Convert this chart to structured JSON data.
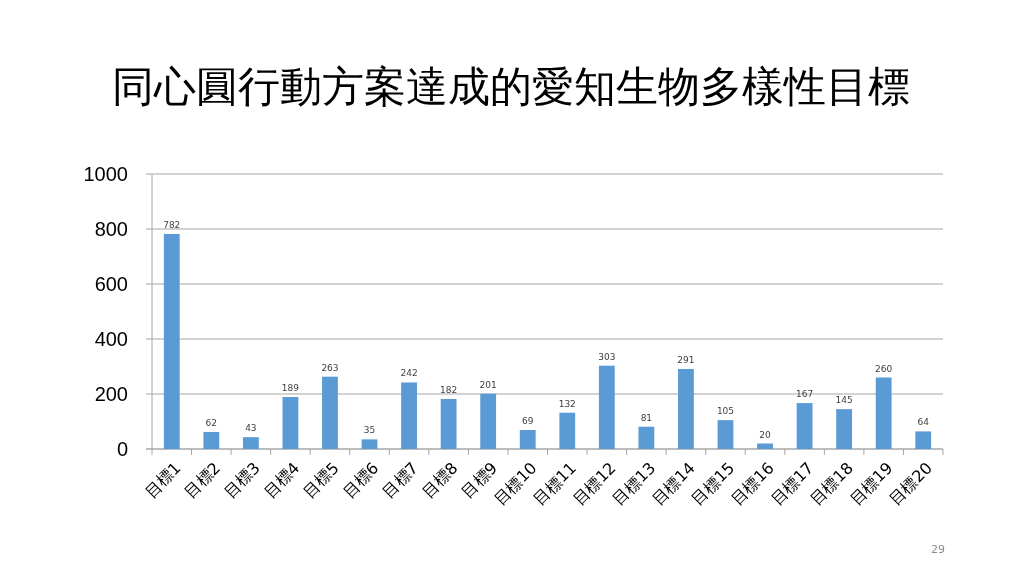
{
  "chart_data": {
    "type": "bar",
    "title": "同心圓行動方案達成的愛知生物多樣性目標",
    "categories": [
      "目標1",
      "目標2",
      "目標3",
      "目標4",
      "目標5",
      "目標6",
      "目標7",
      "目標8",
      "目標9",
      "目標10",
      "目標11",
      "目標12",
      "目標13",
      "目標14",
      "目標15",
      "目標16",
      "目標17",
      "目標18",
      "目標19",
      "目標20"
    ],
    "values": [
      782,
      62,
      43,
      189,
      263,
      35,
      242,
      182,
      201,
      69,
      132,
      303,
      81,
      291,
      105,
      20,
      167,
      145,
      260,
      64
    ],
    "color": "#5b9bd5",
    "ylim": [
      0,
      1000
    ],
    "yticks": [
      0,
      200,
      400,
      600,
      800,
      1000
    ],
    "grid": "y",
    "data_labels": true,
    "annotations": [
      "29"
    ]
  }
}
